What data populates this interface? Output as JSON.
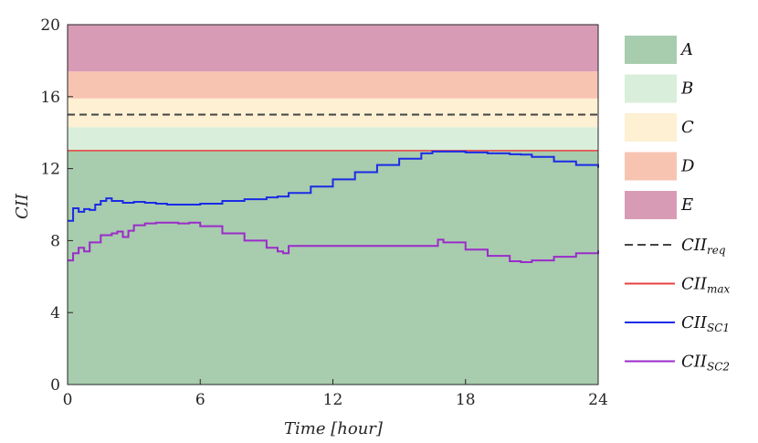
{
  "chart_data": {
    "type": "line",
    "xlabel": "Time [hour]",
    "ylabel": "CII",
    "xlim": [
      0,
      24
    ],
    "ylim": [
      0,
      20
    ],
    "xticks": [
      0,
      6,
      12,
      18,
      24
    ],
    "yticks": [
      0,
      4,
      8,
      12,
      16,
      20
    ],
    "grid": false,
    "legend_position": "right",
    "bands": [
      {
        "name": "A",
        "from": 0,
        "to": 13,
        "color": "#a8ccae"
      },
      {
        "name": "B",
        "from": 13,
        "to": 14.3,
        "color": "#d9efdb"
      },
      {
        "name": "C",
        "from": 14.3,
        "to": 15.9,
        "color": "#fdf0d3"
      },
      {
        "name": "D",
        "from": 15.9,
        "to": 17.4,
        "color": "#f8c4b2"
      },
      {
        "name": "E",
        "from": 17.4,
        "to": 20,
        "color": "#d89bb5"
      }
    ],
    "reference_lines": [
      {
        "name": "CII",
        "subscript": "req",
        "value": 15,
        "color": "#444444",
        "dash": "8,5"
      },
      {
        "name": "CII",
        "subscript": "max",
        "value": 13,
        "color": "#e8413f",
        "dash": ""
      }
    ],
    "series": [
      {
        "name": "CII",
        "subscript": "SC1",
        "color": "#1a2be6",
        "step": true,
        "x": [
          0,
          0.25,
          0.5,
          0.75,
          1.0,
          1.25,
          1.5,
          1.75,
          2.0,
          2.5,
          3.0,
          3.5,
          4.0,
          4.5,
          5.0,
          6.0,
          7.0,
          8.0,
          9.0,
          9.5,
          10.0,
          11.0,
          12.0,
          13.0,
          14.0,
          15.0,
          16.0,
          16.5,
          17.0,
          18.0,
          19.0,
          20.0,
          20.5,
          21.0,
          22.0,
          23.0,
          24.0
        ],
        "y": [
          9.1,
          9.8,
          9.6,
          9.75,
          9.7,
          10.0,
          10.2,
          10.35,
          10.2,
          10.1,
          10.15,
          10.1,
          10.05,
          10.0,
          10.0,
          10.05,
          10.2,
          10.3,
          10.4,
          10.45,
          10.65,
          11.0,
          11.4,
          11.8,
          12.2,
          12.55,
          12.85,
          12.95,
          12.95,
          12.9,
          12.85,
          12.8,
          12.78,
          12.65,
          12.4,
          12.2,
          12.05
        ]
      },
      {
        "name": "CII",
        "subscript": "SC2",
        "color": "#9a2bc9",
        "step": true,
        "x": [
          0,
          0.25,
          0.5,
          0.75,
          1.0,
          1.5,
          2.0,
          2.25,
          2.5,
          2.75,
          3.0,
          3.5,
          4.0,
          4.5,
          5.0,
          5.5,
          6.0,
          7.0,
          8.0,
          9.0,
          9.5,
          9.75,
          10.0,
          11.0,
          12.0,
          13.0,
          14.0,
          15.0,
          16.0,
          16.5,
          16.75,
          17.0,
          18.0,
          19.0,
          20.0,
          20.5,
          21.0,
          22.0,
          23.0,
          24.0
        ],
        "y": [
          6.9,
          7.3,
          7.6,
          7.4,
          7.9,
          8.3,
          8.4,
          8.5,
          8.2,
          8.55,
          8.85,
          8.95,
          9.0,
          9.0,
          8.95,
          9.0,
          8.8,
          8.4,
          8.0,
          7.6,
          7.4,
          7.3,
          7.7,
          7.7,
          7.7,
          7.7,
          7.7,
          7.7,
          7.7,
          7.7,
          8.05,
          7.9,
          7.5,
          7.15,
          6.85,
          6.8,
          6.9,
          7.1,
          7.3,
          7.45
        ]
      }
    ]
  }
}
